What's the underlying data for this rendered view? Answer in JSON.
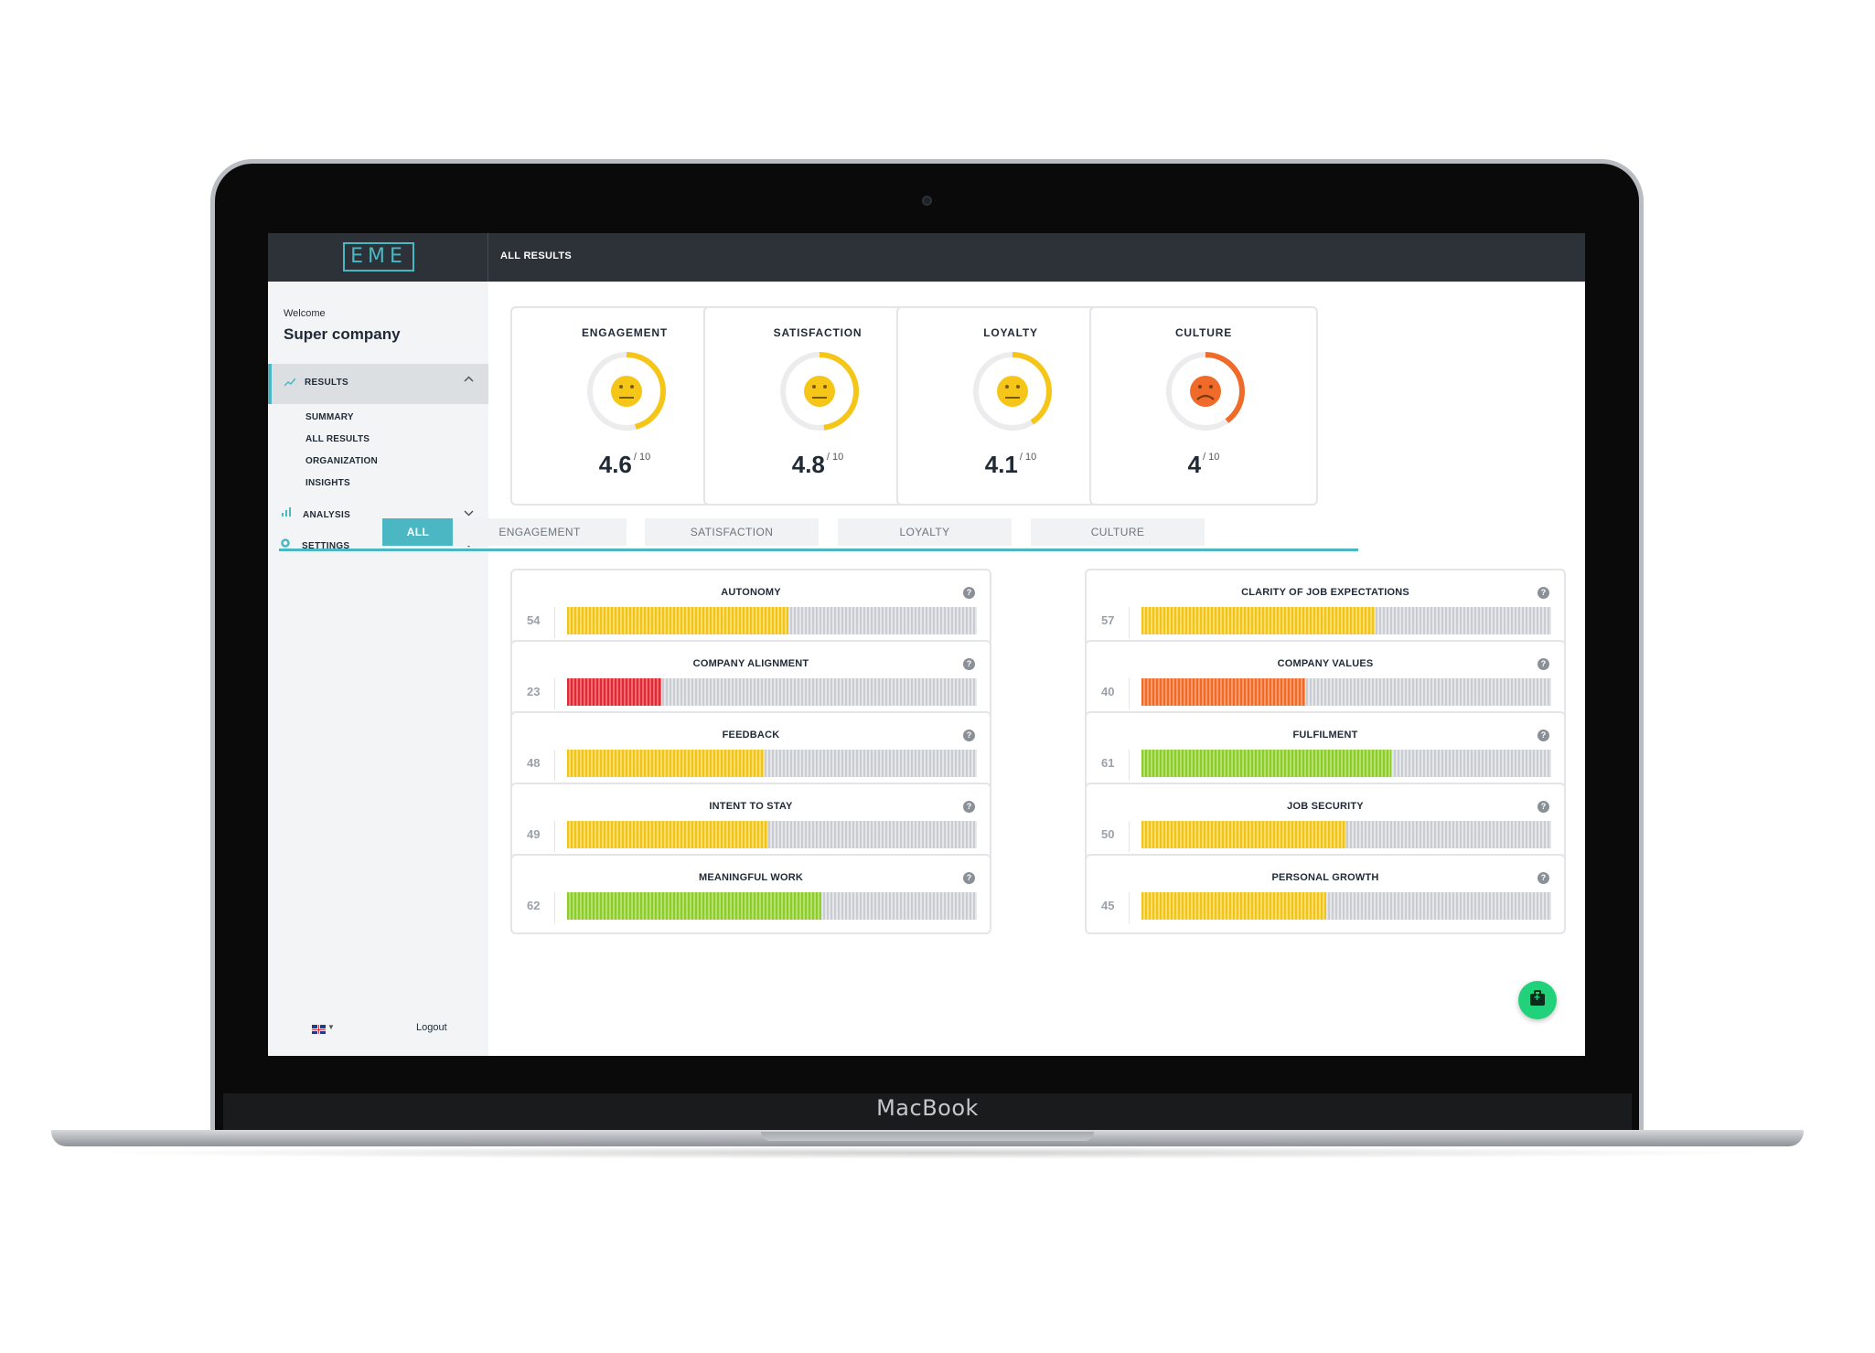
{
  "device": {
    "brand_label": "MacBook"
  },
  "app": {
    "logo_text": "EME",
    "header_title": "ALL RESULTS"
  },
  "sidebar": {
    "welcome": "Welcome",
    "company": "Super company",
    "results_label": "RESULTS",
    "sub_items": [
      "SUMMARY",
      "ALL RESULTS",
      "ORGANIZATION",
      "INSIGHTS"
    ],
    "analysis_label": "ANALYSIS",
    "settings_label": "SETTINGS",
    "logout_label": "Logout",
    "language_icon": "uk-flag-icon"
  },
  "scores": [
    {
      "title": "ENGAGEMENT",
      "value": "4.6",
      "max": "/ 10",
      "ring_fraction": 0.46,
      "mood": "neutral",
      "color": "#f5c518"
    },
    {
      "title": "SATISFACTION",
      "value": "4.8",
      "max": "/ 10",
      "ring_fraction": 0.48,
      "mood": "neutral",
      "color": "#f5c518"
    },
    {
      "title": "LOYALTY",
      "value": "4.1",
      "max": "/ 10",
      "ring_fraction": 0.41,
      "mood": "neutral",
      "color": "#f5c518"
    },
    {
      "title": "CULTURE",
      "value": "4",
      "max": "/ 10",
      "ring_fraction": 0.4,
      "mood": "sad",
      "color": "#f06a2a"
    }
  ],
  "tabs": [
    "ALL",
    "ENGAGEMENT",
    "SATISFACTION",
    "LOYALTY",
    "CULTURE"
  ],
  "active_tab": "ALL",
  "metrics": [
    {
      "title": "AUTONOMY",
      "score": "54",
      "fill_percent": 54,
      "color": "yellow"
    },
    {
      "title": "CLARITY OF JOB EXPECTATIONS",
      "score": "57",
      "fill_percent": 57,
      "color": "yellow"
    },
    {
      "title": "COMPANY ALIGNMENT",
      "score": "23",
      "fill_percent": 23,
      "color": "red"
    },
    {
      "title": "COMPANY VALUES",
      "score": "40",
      "fill_percent": 40,
      "color": "orange"
    },
    {
      "title": "FEEDBACK",
      "score": "48",
      "fill_percent": 48,
      "color": "yellow"
    },
    {
      "title": "FULFILMENT",
      "score": "61",
      "fill_percent": 61,
      "color": "green"
    },
    {
      "title": "INTENT TO STAY",
      "score": "49",
      "fill_percent": 49,
      "color": "yellow"
    },
    {
      "title": "JOB SECURITY",
      "score": "50",
      "fill_percent": 50,
      "color": "yellow"
    },
    {
      "title": "MEANINGFUL WORK",
      "score": "62",
      "fill_percent": 62,
      "color": "green"
    },
    {
      "title": "PERSONAL GROWTH",
      "score": "45",
      "fill_percent": 45,
      "color": "yellow"
    }
  ],
  "help_icon_glyph": "?",
  "fab_icon": "first-aid-kit-icon"
}
